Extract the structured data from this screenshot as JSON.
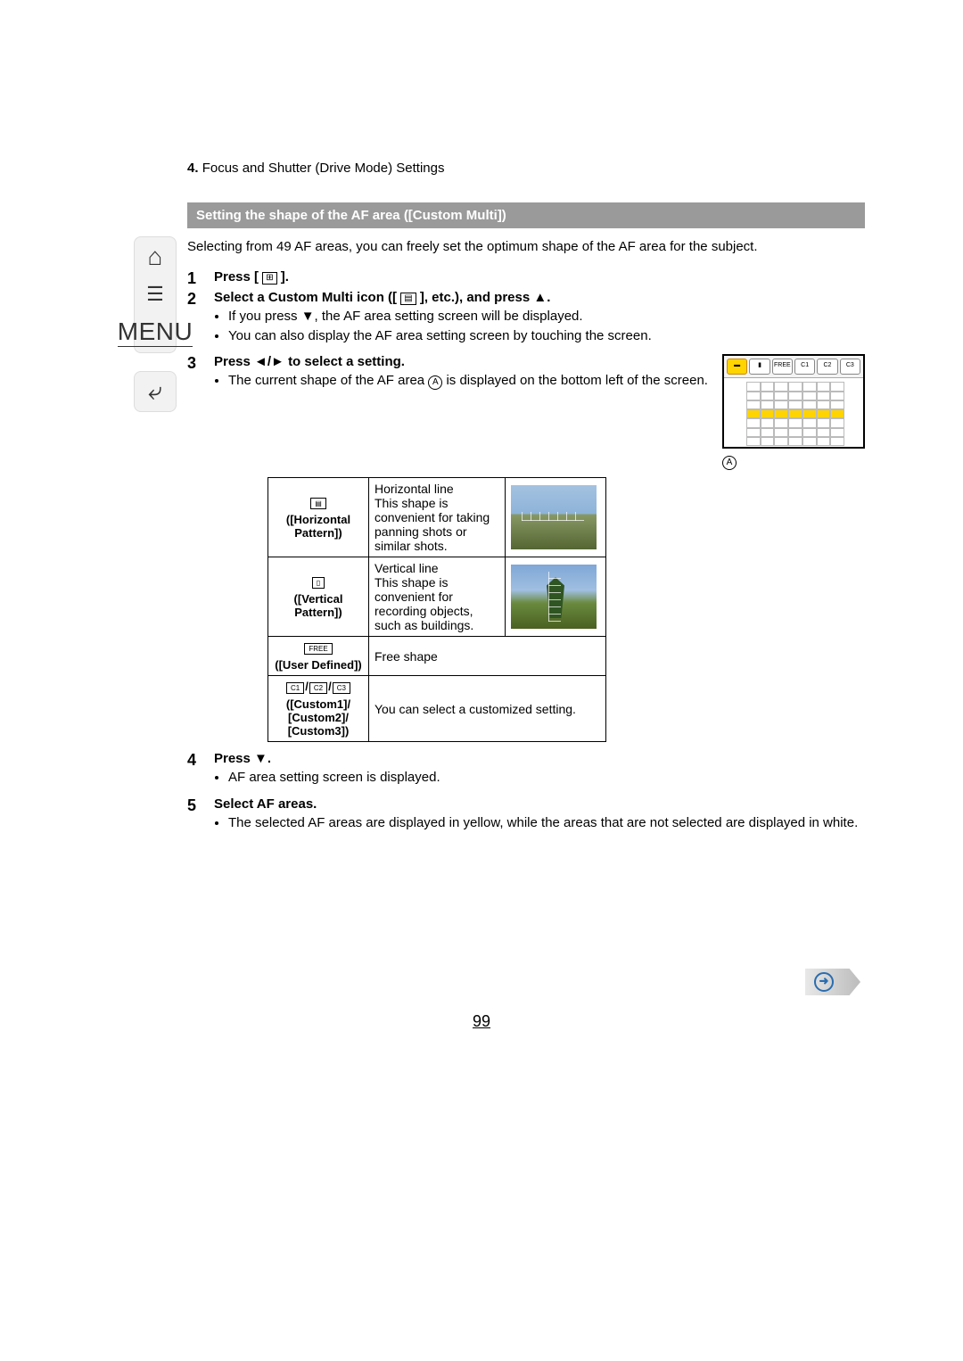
{
  "breadcrumb": {
    "num": "4.",
    "text": "Focus and Shutter (Drive Mode) Settings"
  },
  "sidebar": {
    "menu_label": "MENU"
  },
  "subheader": "Setting the shape of the AF area ([Custom Multi])",
  "intro": "Selecting from 49 AF areas, you can freely set the optimum shape of the AF area for the subject.",
  "steps": {
    "s1_num": "1",
    "s1_title_a": "Press [",
    "s1_icon": "⊞",
    "s1_title_b": "].",
    "s2_num": "2",
    "s2_title_a": "Select a Custom Multi icon ([",
    "s2_icon": "▤",
    "s2_title_b": "], etc.), and press ▲.",
    "s2_b1": "If you press ▼, the AF area setting screen will be displayed.",
    "s2_b2": "You can also display the AF area setting screen by touching the screen.",
    "s3_num": "3",
    "s3_title": "Press ◄/► to select a setting.",
    "s3_b1_a": "The current shape of the AF area ",
    "s3_b1_circ": "A",
    "s3_b1_b": " is displayed on the bottom left of the screen.",
    "s4_num": "4",
    "s4_title": "Press ▼.",
    "s4_b1": "AF area setting screen is displayed.",
    "s5_num": "5",
    "s5_title": "Select AF areas.",
    "s5_b1": "The selected AF areas are displayed in yellow, while the areas that are not selected are displayed in white."
  },
  "table": {
    "r1_icon": "▤",
    "r1_label": "([Horizontal Pattern])",
    "r1_desc": "Horizontal line\nThis shape is convenient for taking panning shots or similar shots.",
    "r2_icon": "▯",
    "r2_label": "([Vertical Pattern])",
    "r2_desc": "Vertical line\nThis shape is convenient for recording objects, such as buildings.",
    "r3_icon": "FREE",
    "r3_label": "([User Defined])",
    "r3_desc": "Free shape",
    "r4_icon_a": "C1",
    "r4_icon_b": "C2",
    "r4_icon_c": "C3",
    "r4_sep": "/",
    "r4_label": "([Custom1]/ [Custom2]/ [Custom3])",
    "r4_desc": "You can select a customized setting."
  },
  "screen": {
    "b_free": "FREE",
    "b_c1": "C1",
    "b_c2": "C2",
    "b_c3": "C3",
    "a_label": "A"
  },
  "page_number": "99",
  "next_glyph": "➜"
}
